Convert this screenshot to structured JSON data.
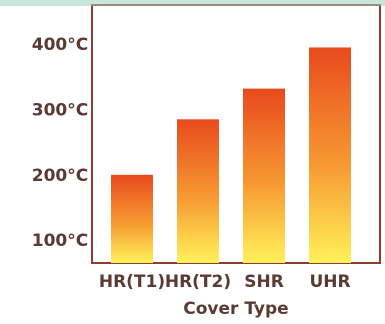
{
  "chart_data": {
    "type": "bar",
    "categories": [
      "HR(T1)",
      "HR(T2)",
      "SHR",
      "UHR"
    ],
    "values": [
      200,
      285,
      332,
      395
    ],
    "xlabel": "Cover Type",
    "ylabel": "",
    "y_ticks": [
      "100°C",
      "200°C",
      "300°C",
      "400°C"
    ],
    "tick_values": [
      100,
      200,
      300,
      400
    ],
    "ylim": [
      65,
      460
    ],
    "grid": false,
    "colors": {
      "bar_top": "#e84a1e",
      "bar_mid": "#f79a32",
      "bar_bottom": "#fff25a",
      "frame": "#8b3f2f",
      "text": "#5b3a33"
    }
  }
}
